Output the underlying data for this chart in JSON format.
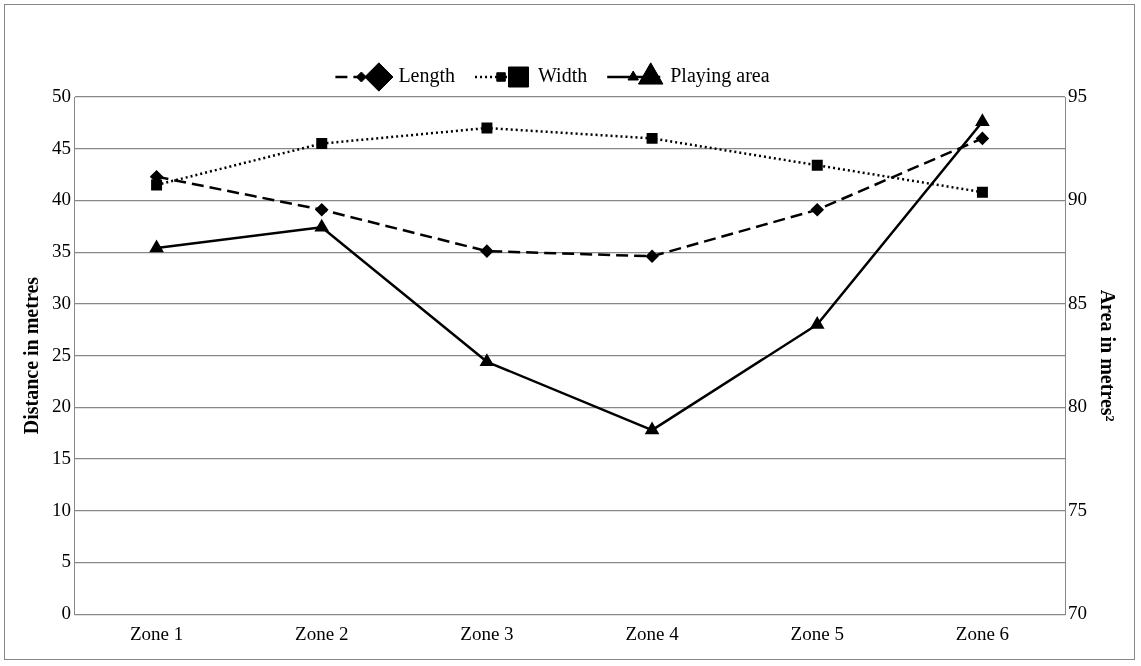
{
  "chart_data": {
    "type": "line",
    "categories": [
      "Zone 1",
      "Zone 2",
      "Zone 3",
      "Zone 4",
      "Zone 5",
      "Zone 6"
    ],
    "ylabel": "Distance in metres",
    "y2label": "Area in metres²",
    "ylim": [
      0,
      50
    ],
    "yticks": [
      0,
      5,
      10,
      15,
      20,
      25,
      30,
      35,
      40,
      45,
      50
    ],
    "y2lim": [
      70,
      95
    ],
    "y2ticks": [
      70,
      75,
      80,
      85,
      90,
      95
    ],
    "grid": "y",
    "legend": "top",
    "series": [
      {
        "name": "Length",
        "color": "#000000",
        "marker": "diamond",
        "line_style": "dashed",
        "values": [
          42.3,
          39.1,
          35.1,
          34.6,
          39.1,
          46.0
        ]
      },
      {
        "name": "Width",
        "color": "#000000",
        "marker": "square",
        "line_style": "dotted",
        "values": [
          41.5,
          45.5,
          47.0,
          46.0,
          43.4,
          40.8
        ]
      },
      {
        "name": "Playing area",
        "color": "#000000",
        "marker": "triangle",
        "line_style": "solid",
        "axis": "y2",
        "values": [
          87.7,
          88.7,
          82.2,
          78.9,
          84.0,
          93.8
        ]
      }
    ]
  }
}
